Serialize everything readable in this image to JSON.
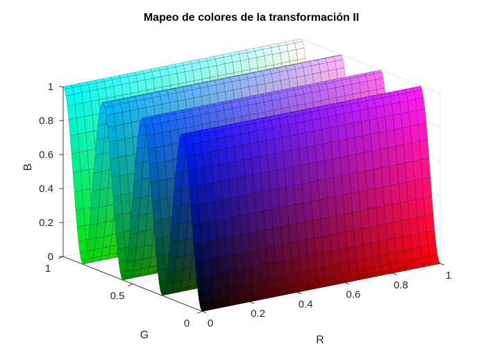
{
  "chart_data": {
    "type": "surface",
    "title": "Mapeo de colores de la transformación II",
    "xlabel": "R",
    "ylabel": "G",
    "zlabel": "B",
    "xlim": [
      0,
      1
    ],
    "ylim": [
      0,
      1
    ],
    "zlim": [
      0,
      1
    ],
    "x_ticks": [
      "0",
      "0.2",
      "0.4",
      "0.6",
      "0.8",
      "1"
    ],
    "y_ticks": [
      "0",
      "0.5",
      "1"
    ],
    "z_ticks": [
      "0",
      "0.2",
      "0.4",
      "0.6",
      "0.8",
      "1"
    ],
    "grid": true,
    "surface": {
      "description": "B = 0.5 - 0.5*cos(2*pi*3.5*G), constant along R; facet color = (R, G, B)",
      "cycles_along_G": 3.5,
      "value_at_G0": 0,
      "value_at_G1": 1,
      "colormap": "rgb"
    }
  }
}
